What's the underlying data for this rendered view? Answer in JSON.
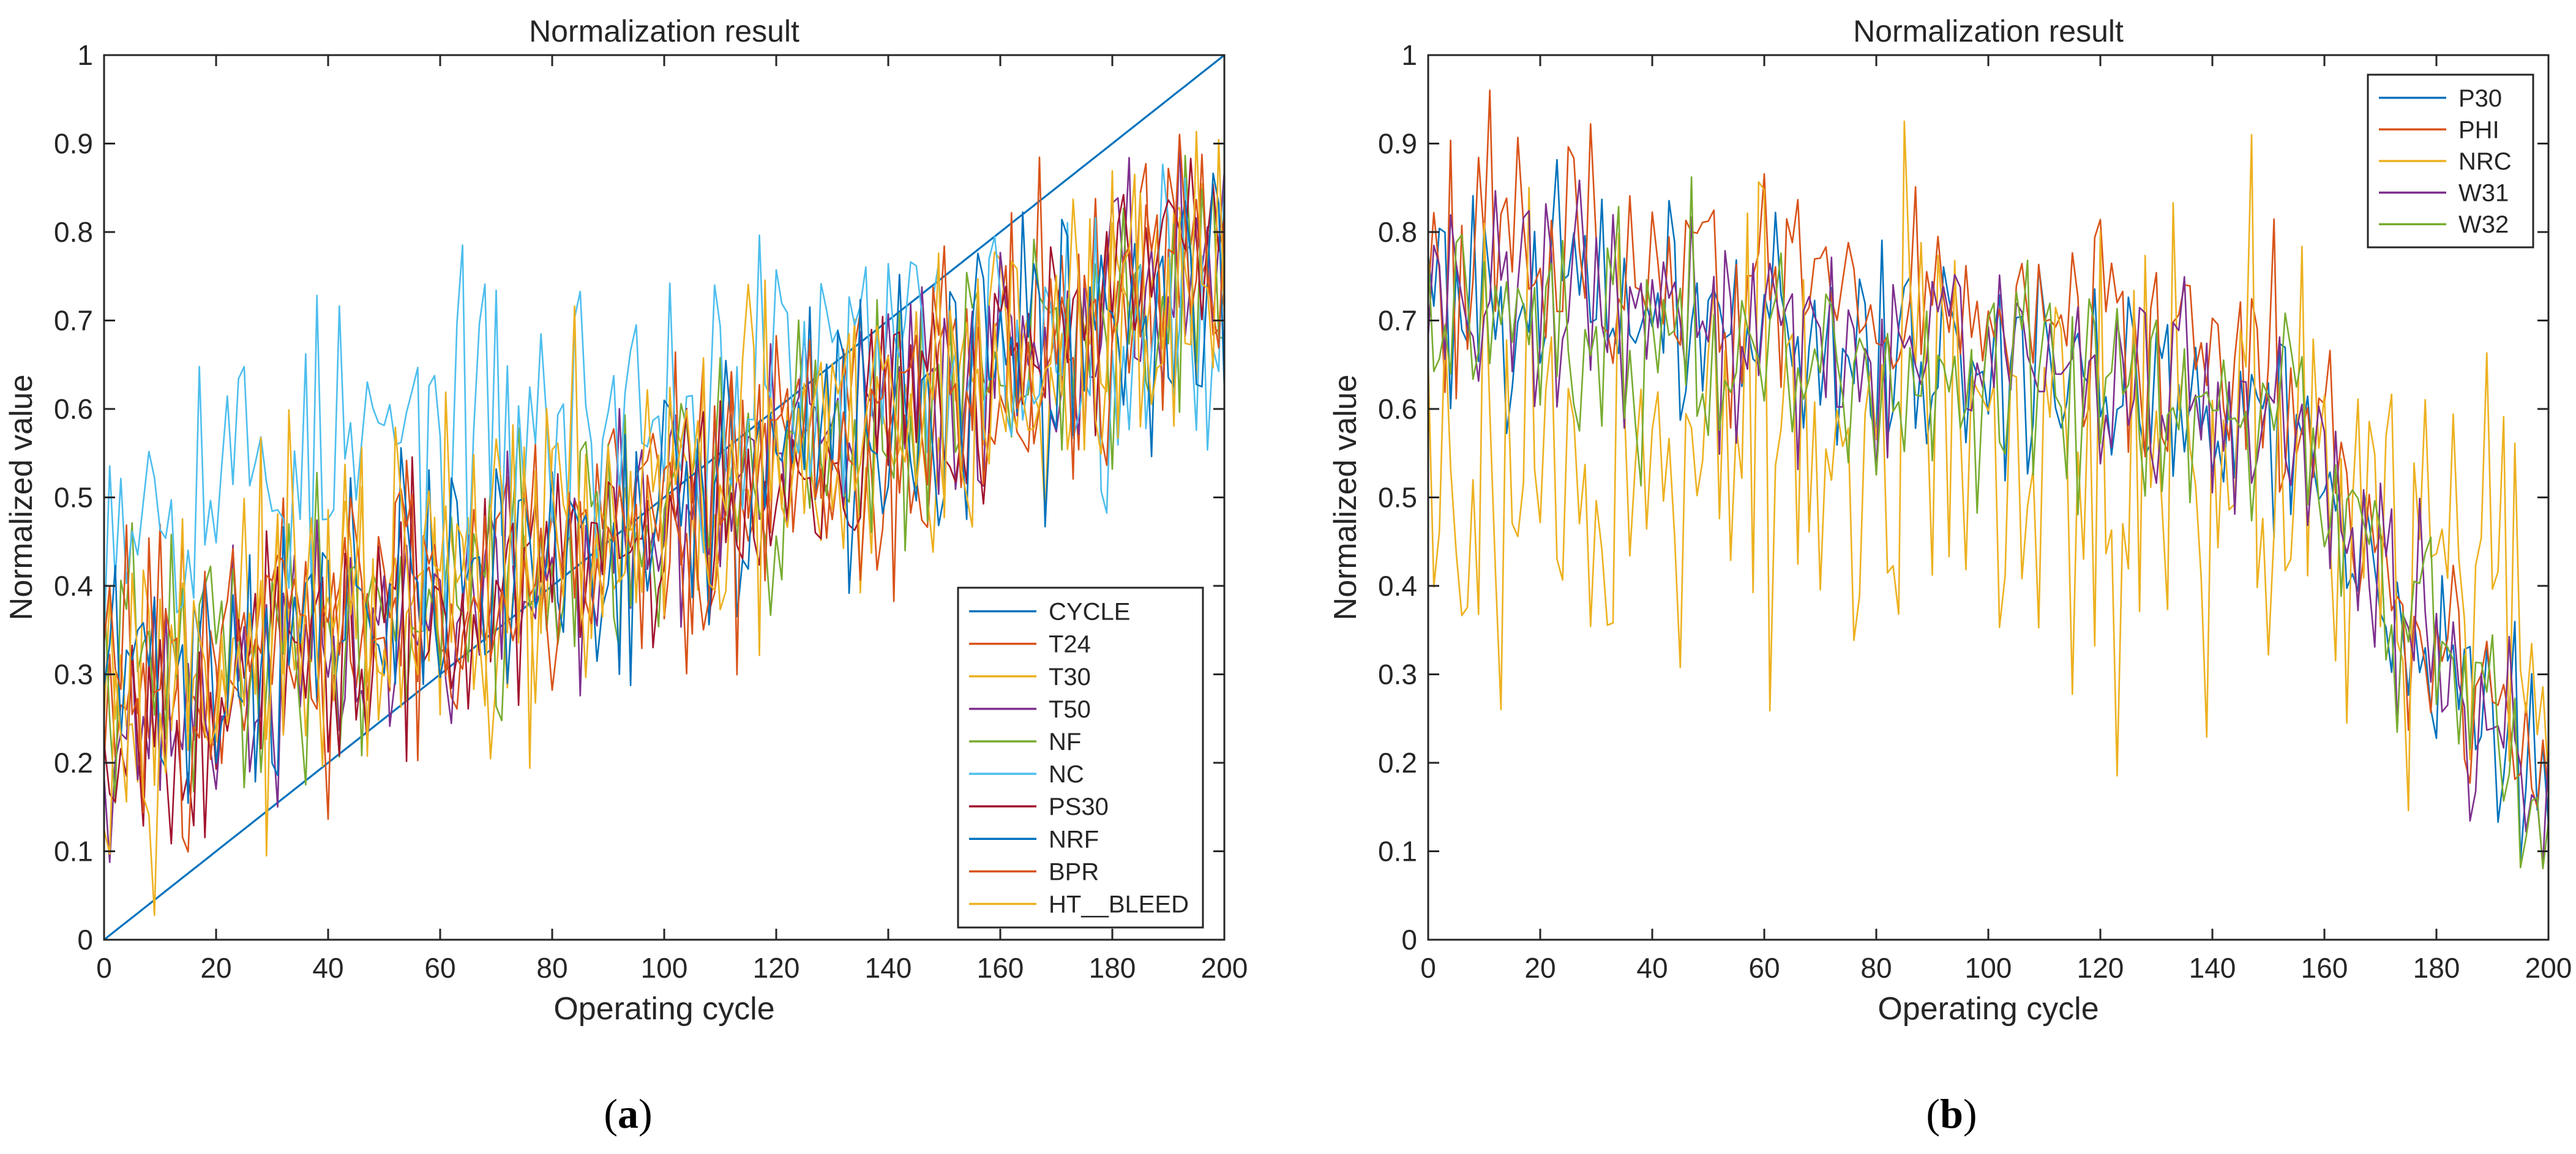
{
  "chart_data": [
    {
      "id": "a",
      "type": "line",
      "panel_label": "a",
      "title": "Normalization result",
      "xlabel": "Operating cycle",
      "ylabel": "Normalized value",
      "xlim": [
        0,
        200
      ],
      "ylim": [
        0,
        1
      ],
      "xticks": [
        0,
        20,
        40,
        60,
        80,
        100,
        120,
        140,
        160,
        180,
        200
      ],
      "yticks": [
        0,
        0.1,
        0.2,
        0.3,
        0.4,
        0.5,
        0.6,
        0.7,
        0.8,
        0.9,
        1
      ],
      "ytick_labels": [
        "0",
        "0.1",
        "0.2",
        "0.3",
        "0.4",
        "0.5",
        "0.6",
        "0.7",
        "0.8",
        "0.9",
        "1"
      ],
      "grid": false,
      "legend_position": "bottom-right",
      "series": [
        {
          "name": "CYCLE",
          "color": "#0072BD",
          "kind": "linear",
          "start": 0,
          "end": 1
        },
        {
          "name": "T24",
          "color": "#D95319",
          "kind": "trend",
          "start": 0.3,
          "end": 0.75,
          "noise": 0.1,
          "seed": 11
        },
        {
          "name": "T30",
          "color": "#EDB120",
          "kind": "trend",
          "start": 0.3,
          "end": 0.75,
          "noise": 0.1,
          "seed": 23
        },
        {
          "name": "T50",
          "color": "#7E2F8E",
          "kind": "trend",
          "start": 0.25,
          "end": 0.8,
          "noise": 0.09,
          "seed": 37
        },
        {
          "name": "NF",
          "color": "#77AC30",
          "kind": "trend",
          "start": 0.3,
          "end": 0.75,
          "noise": 0.1,
          "seed": 41
        },
        {
          "name": "NC",
          "color": "#4DBEEE",
          "kind": "trend",
          "start": 0.52,
          "end": 0.72,
          "noise": 0.11,
          "seed": 53
        },
        {
          "name": "PS30",
          "color": "#A2142F",
          "kind": "trend",
          "start": 0.25,
          "end": 0.8,
          "noise": 0.09,
          "seed": 67
        },
        {
          "name": "NRF",
          "color": "#0072BD",
          "kind": "trend",
          "start": 0.3,
          "end": 0.75,
          "noise": 0.1,
          "seed": 71
        },
        {
          "name": "BPR",
          "color": "#D95319",
          "kind": "trend",
          "start": 0.3,
          "end": 0.75,
          "noise": 0.1,
          "seed": 83
        },
        {
          "name": "HT__BLEED",
          "color": "#EDB120",
          "kind": "trend",
          "start": 0.3,
          "end": 0.75,
          "noise": 0.12,
          "seed": 97
        }
      ]
    },
    {
      "id": "b",
      "type": "line",
      "panel_label": "b",
      "title": "Normalization result",
      "xlabel": "Operating cycle",
      "ylabel": "Normalized value",
      "xlim": [
        0,
        200
      ],
      "ylim": [
        0,
        1
      ],
      "xticks": [
        0,
        20,
        40,
        60,
        80,
        100,
        120,
        140,
        160,
        180,
        200
      ],
      "yticks": [
        0,
        0.1,
        0.2,
        0.3,
        0.4,
        0.5,
        0.6,
        0.7,
        0.8,
        0.9,
        1
      ],
      "ytick_labels": [
        "0",
        "0.1",
        "0.2",
        "0.3",
        "0.4",
        "0.5",
        "0.6",
        "0.7",
        "0.8",
        "0.9",
        "1"
      ],
      "grid": false,
      "legend_position": "top-right",
      "series": [
        {
          "name": "P30",
          "color": "#0072BD",
          "kind": "decline",
          "start": 0.75,
          "mid": 0.6,
          "end": 0.15,
          "noise": 0.08,
          "seed": 101
        },
        {
          "name": "PHI",
          "color": "#D95319",
          "kind": "decline",
          "start": 0.8,
          "mid": 0.65,
          "end": 0.15,
          "noise": 0.09,
          "seed": 113
        },
        {
          "name": "NRC",
          "color": "#EDB120",
          "kind": "decline",
          "start": 0.55,
          "mid": 0.55,
          "end": 0.35,
          "noise": 0.18,
          "seed": 127
        },
        {
          "name": "W31",
          "color": "#7E2F8E",
          "kind": "decline",
          "start": 0.75,
          "mid": 0.6,
          "end": 0.15,
          "noise": 0.08,
          "seed": 131
        },
        {
          "name": "W32",
          "color": "#77AC30",
          "kind": "decline",
          "start": 0.72,
          "mid": 0.58,
          "end": 0.15,
          "noise": 0.08,
          "seed": 149
        }
      ]
    }
  ]
}
